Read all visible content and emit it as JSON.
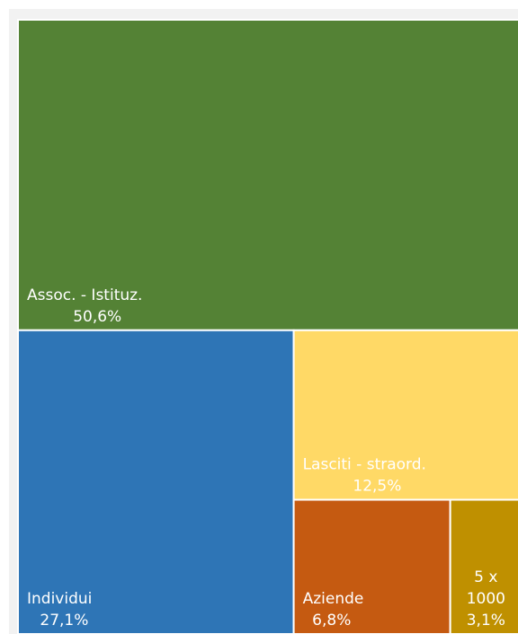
{
  "chart_data": {
    "type": "treemap",
    "items": [
      {
        "name": "Assoc. - Istituz.",
        "value_label": "50,6%",
        "value": 50.6,
        "color": "#548235"
      },
      {
        "name": "Individui",
        "value_label": "27,1%",
        "value": 27.1,
        "color": "#2e75b6"
      },
      {
        "name": "Lasciti - straord.",
        "value_label": "12,5%",
        "value": 12.5,
        "color": "#ffd966"
      },
      {
        "name": "Aziende",
        "value_label": "6,8%",
        "value": 6.8,
        "color": "#c55a11"
      },
      {
        "name": "5 x 1000",
        "name_lines": [
          "5 x",
          "1000"
        ],
        "value_label": "3,1%",
        "value": 3.1,
        "color": "#bf9000"
      }
    ]
  }
}
